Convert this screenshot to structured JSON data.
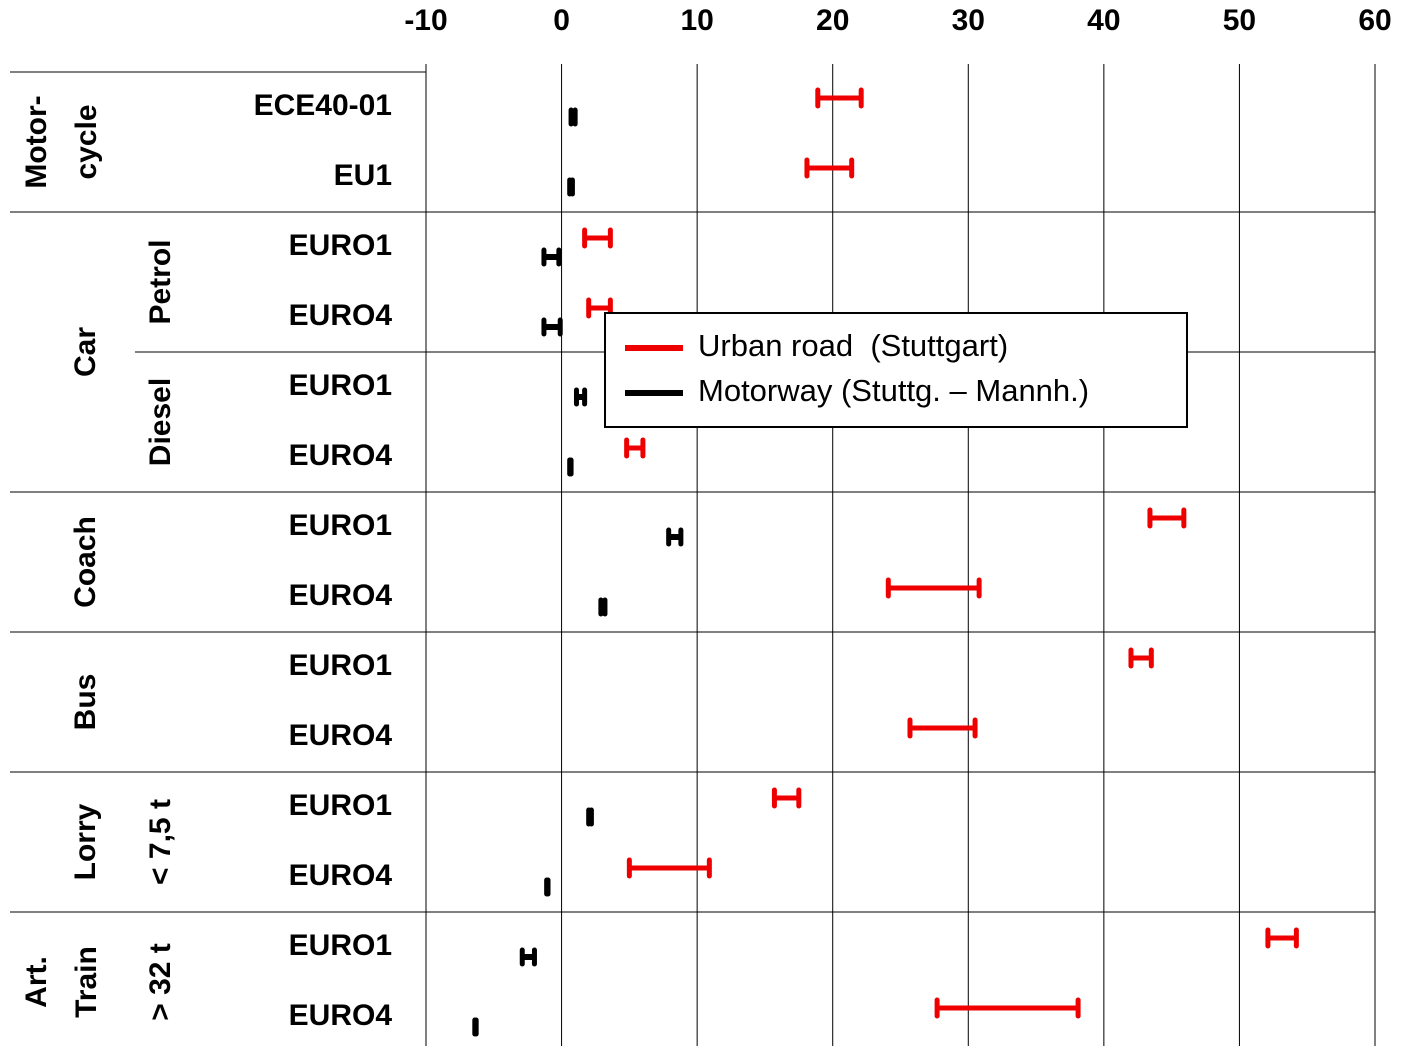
{
  "chart_data": {
    "type": "range",
    "categories": [
      "ECE40-01",
      "EU1",
      "EURO1",
      "EURO4",
      "EURO1",
      "EURO4",
      "EURO1",
      "EURO4",
      "EURO1",
      "EURO4",
      "EURO1",
      "EURO4",
      "EURO1",
      "EURO4"
    ],
    "groups": [
      {
        "lines": [
          "Motor-",
          "cycle"
        ],
        "size": 2,
        "subgroups": []
      },
      {
        "lines": [
          "Car"
        ],
        "size": 4,
        "subgroups": [
          {
            "lines": [
              "Petrol"
            ],
            "size": 2
          },
          {
            "lines": [
              "Diesel"
            ],
            "size": 2
          }
        ]
      },
      {
        "lines": [
          "Coach"
        ],
        "size": 2,
        "subgroups": []
      },
      {
        "lines": [
          "Bus"
        ],
        "size": 2,
        "subgroups": []
      },
      {
        "lines": [
          "Lorry"
        ],
        "size": 2,
        "subgroups": [
          {
            "lines": [
              "< 7,5 t"
            ],
            "size": 2
          }
        ]
      },
      {
        "lines": [
          "Art.",
          "Train"
        ],
        "size": 2,
        "subgroups": [
          {
            "lines": [
              "> 32 t"
            ],
            "size": 2
          }
        ]
      }
    ],
    "series": [
      {
        "name": "Urban road  (Stuttgart)",
        "color": "#ee0000",
        "low": [
          18.9,
          18.1,
          1.7,
          2.0,
          null,
          4.8,
          43.4,
          24.1,
          42.0,
          25.7,
          15.7,
          5.0,
          52.1,
          27.7
        ],
        "high": [
          22.1,
          21.4,
          3.6,
          3.6,
          null,
          6.0,
          45.9,
          30.8,
          43.5,
          30.5,
          17.5,
          10.9,
          54.2,
          38.1
        ]
      },
      {
        "name": "Motorway (Stuttg. – Mannh.)",
        "color": "#000000",
        "low": [
          0.7,
          0.6,
          -1.3,
          -1.3,
          1.1,
          0.6,
          7.9,
          2.9,
          null,
          null,
          2.0,
          -1.1,
          -2.9,
          -6.4
        ],
        "high": [
          1.0,
          0.8,
          -0.2,
          -0.1,
          1.7,
          0.7,
          8.8,
          3.2,
          null,
          null,
          2.2,
          -1.0,
          -2.0,
          -6.3
        ]
      }
    ],
    "xlim": [
      -10,
      60
    ],
    "xticks": [
      -10,
      0,
      10,
      20,
      30,
      40,
      50,
      60
    ],
    "grid": true
  }
}
